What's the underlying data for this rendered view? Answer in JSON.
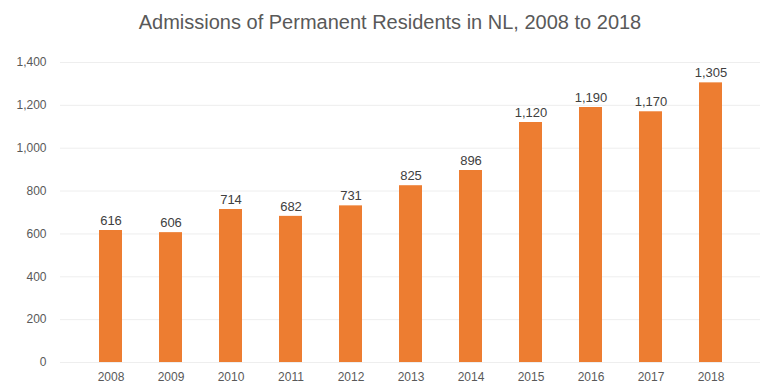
{
  "chart_data": {
    "type": "bar",
    "title": "Admissions of Permanent Residents in NL, 2008 to 2018",
    "categories": [
      "2008",
      "2009",
      "2010",
      "2011",
      "2012",
      "2013",
      "2014",
      "2015",
      "2016",
      "2017",
      "2018"
    ],
    "values": [
      616,
      606,
      714,
      682,
      731,
      825,
      896,
      1120,
      1190,
      1170,
      1305
    ],
    "value_labels": [
      "616",
      "606",
      "714",
      "682",
      "731",
      "825",
      "896",
      "1,120",
      "1,190",
      "1,170",
      "1,305"
    ],
    "color": "#ed7d31",
    "ylim": [
      0,
      1400
    ],
    "yticks": [
      0,
      200,
      400,
      600,
      800,
      1000,
      1200,
      1400
    ],
    "grid": true,
    "data_labels": true
  }
}
